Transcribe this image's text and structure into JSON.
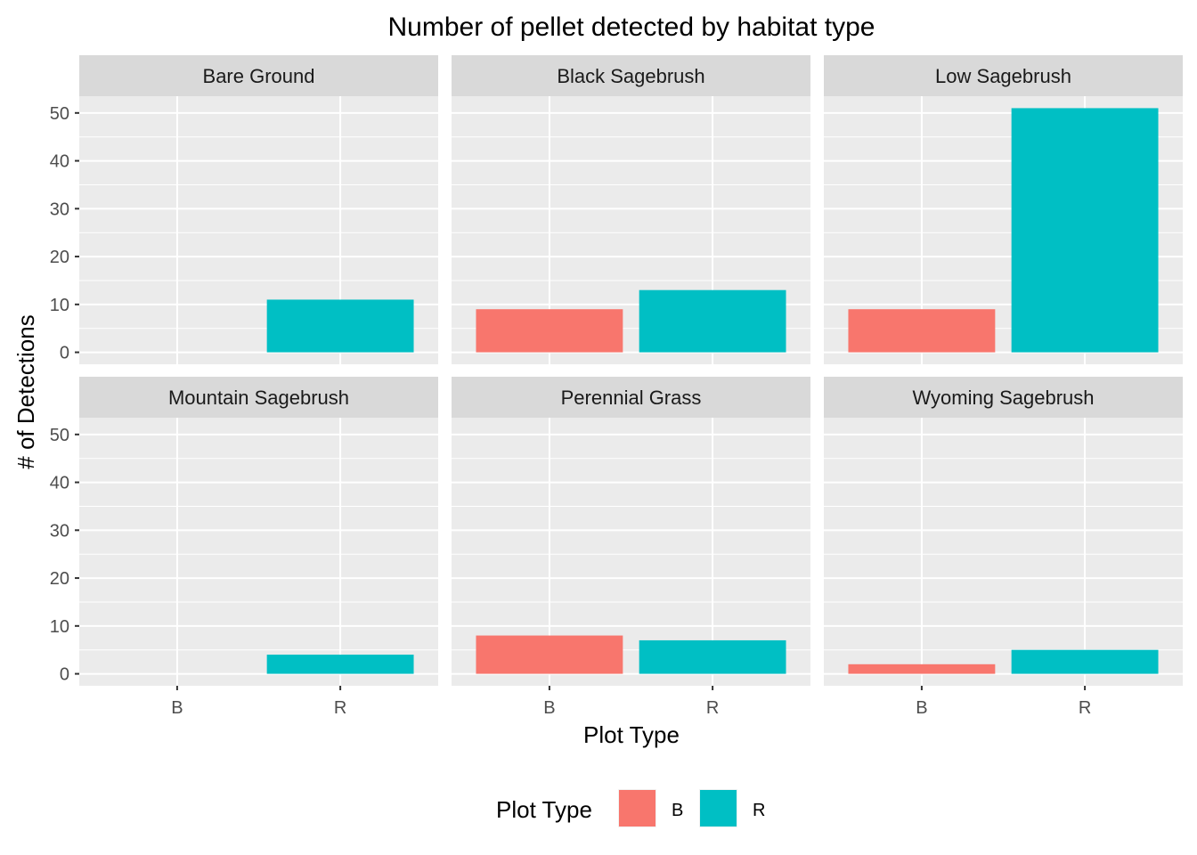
{
  "chart_data": {
    "type": "bar",
    "title": "Number of pellet detected by habitat type",
    "xlabel": "Plot Type",
    "ylabel": "# of Detections",
    "categories": [
      "B",
      "R"
    ],
    "ylim": [
      -2.5,
      53.5
    ],
    "yticks": [
      0,
      10,
      20,
      30,
      40,
      50
    ],
    "grid": true,
    "facets": [
      {
        "name": "Bare Ground",
        "values": [
          0,
          11
        ]
      },
      {
        "name": "Black Sagebrush",
        "values": [
          9,
          13
        ]
      },
      {
        "name": "Low Sagebrush",
        "values": [
          9,
          51
        ]
      },
      {
        "name": "Mountain Sagebrush",
        "values": [
          0,
          4
        ]
      },
      {
        "name": "Perennial Grass",
        "values": [
          8,
          7
        ]
      },
      {
        "name": "Wyoming Sagebrush",
        "values": [
          2,
          5
        ]
      }
    ],
    "legend": {
      "title": "Plot Type",
      "position": "bottom",
      "items": [
        {
          "label": "B",
          "color": "#F8766D"
        },
        {
          "label": "R",
          "color": "#00BFC4"
        }
      ]
    }
  }
}
